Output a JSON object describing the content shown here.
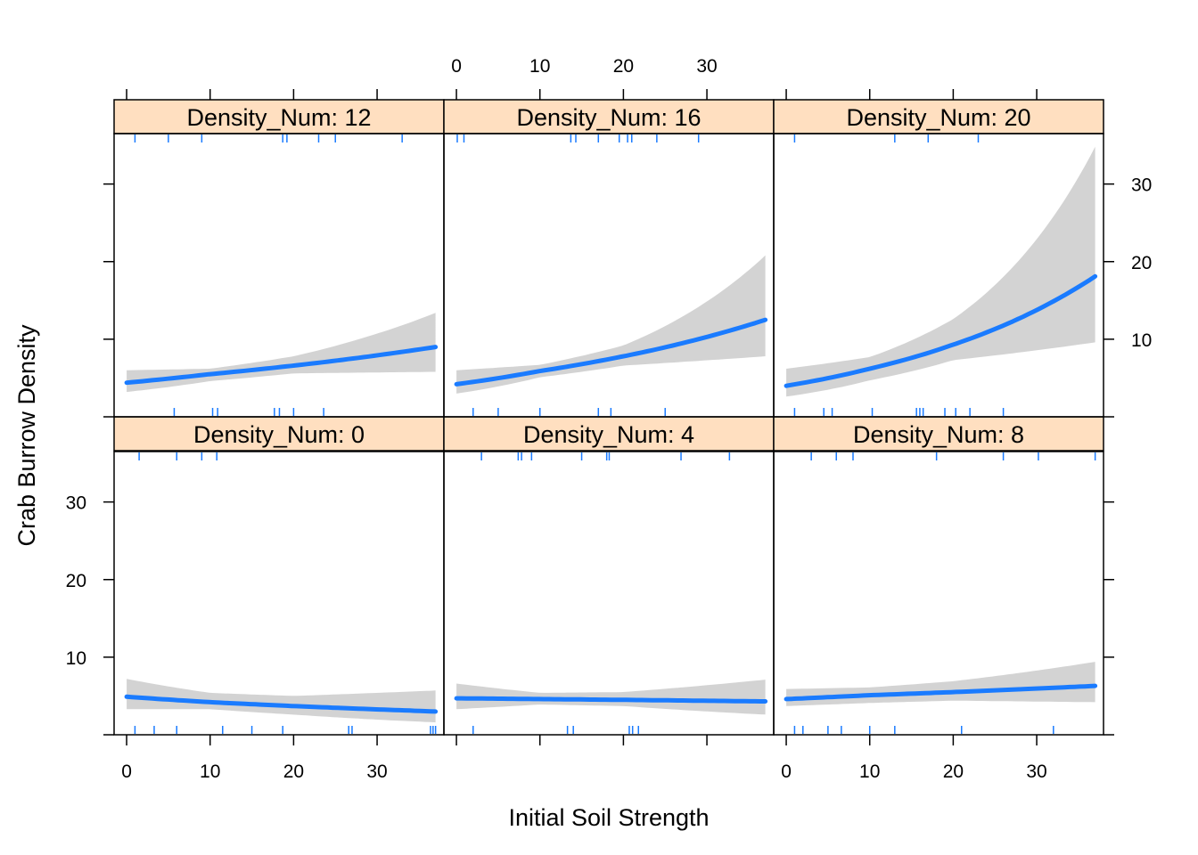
{
  "chart_data": {
    "type": "line",
    "xlabel": "Initial Soil Strength",
    "ylabel": "Crab Burrow Density",
    "xlim": [
      -1.5,
      38
    ],
    "ylim": [
      0,
      36.5
    ],
    "x_ticks": [
      0,
      10,
      20,
      30
    ],
    "y_ticks": [
      10,
      20,
      30
    ],
    "grid": false,
    "colors": {
      "line": "#1a7bff",
      "band": "#d3d3d3",
      "strip": "#ffdfc0",
      "rug": "#1a7bff"
    },
    "panels": [
      {
        "label": "Density_Num: 0",
        "curve": {
          "x": [
            0,
            10,
            20,
            37
          ],
          "y": [
            4.9,
            4.2,
            3.7,
            3.0
          ]
        },
        "band": {
          "x": [
            0,
            10,
            20,
            37
          ],
          "lower": [
            3.3,
            3.3,
            2.6,
            1.6
          ],
          "upper": [
            7.2,
            5.4,
            5.0,
            5.7
          ]
        },
        "rug_top": [
          1.5,
          6,
          9,
          10.8
        ],
        "rug_bottom": [
          1,
          3.3,
          6,
          11.5,
          15,
          18.7,
          26.6,
          27,
          36.4,
          36.7,
          37
        ]
      },
      {
        "label": "Density_Num: 4",
        "curve": {
          "x": [
            0,
            10,
            20,
            37
          ],
          "y": [
            4.7,
            4.6,
            4.5,
            4.3
          ]
        },
        "band": {
          "x": [
            0,
            10,
            20,
            37
          ],
          "lower": [
            3.3,
            3.9,
            3.7,
            2.6
          ],
          "upper": [
            6.6,
            5.4,
            5.5,
            7.1
          ]
        },
        "rug_top": [
          3,
          7.4,
          7.8,
          9,
          15,
          18,
          18.3,
          26.9,
          32.7
        ],
        "rug_bottom": [
          2,
          13.3,
          14,
          20.7,
          21.1,
          21.8
        ]
      },
      {
        "label": "Density_Num: 8",
        "curve": {
          "x": [
            0,
            10,
            20,
            37
          ],
          "y": [
            4.6,
            5.1,
            5.5,
            6.3
          ]
        },
        "band": {
          "x": [
            0,
            10,
            20,
            37
          ],
          "lower": [
            3.7,
            4.1,
            4.4,
            4.2
          ],
          "upper": [
            5.9,
            6.1,
            6.9,
            9.4
          ]
        },
        "rug_top": [
          3,
          6,
          8,
          18,
          26,
          30.2,
          37
        ],
        "rug_bottom": [
          1,
          2,
          5,
          6.6,
          10,
          13,
          21,
          32
        ]
      },
      {
        "label": "Density_Num: 12",
        "curve": {
          "x": [
            0,
            10,
            20,
            37
          ],
          "y": [
            4.4,
            5.5,
            6.6,
            9.0
          ]
        },
        "band": {
          "x": [
            0,
            10,
            20,
            37
          ],
          "lower": [
            3.2,
            4.6,
            5.6,
            5.8
          ],
          "upper": [
            6.0,
            6.2,
            7.8,
            13.4
          ]
        },
        "rug_top": [
          1,
          5,
          9,
          18.7,
          19.2,
          23,
          25,
          33
        ],
        "rug_bottom": [
          5.7,
          10.3,
          10.9,
          17.7,
          18.3,
          20,
          23.6
        ]
      },
      {
        "label": "Density_Num: 16",
        "curve": {
          "x": [
            0,
            10,
            20,
            37
          ],
          "y": [
            4.2,
            5.9,
            7.8,
            12.5
          ]
        },
        "band": {
          "x": [
            0,
            10,
            20,
            37
          ],
          "lower": [
            3.0,
            5.1,
            6.6,
            7.8
          ],
          "upper": [
            6.0,
            6.7,
            9.2,
            20.8
          ]
        },
        "rug_top": [
          0.1,
          0.9,
          13.7,
          14.3,
          17,
          19.5,
          20.5,
          21,
          24,
          29
        ],
        "rug_bottom": [
          2,
          5,
          10,
          17,
          18.5,
          25
        ]
      },
      {
        "label": "Density_Num: 20",
        "curve": {
          "x": [
            0,
            10,
            20,
            37
          ],
          "y": [
            4.0,
            6.2,
            9.3,
            18.1
          ]
        },
        "band": {
          "x": [
            0,
            10,
            20,
            37
          ],
          "lower": [
            2.6,
            4.7,
            7.3,
            9.6
          ],
          "upper": [
            6.2,
            7.7,
            12.6,
            34.8
          ]
        },
        "rug_top": [
          1,
          13,
          17,
          23
        ],
        "rug_bottom": [
          1,
          4.5,
          5.5,
          10.3,
          15.6,
          16,
          16.4,
          19,
          20.3,
          22,
          26
        ]
      }
    ]
  }
}
